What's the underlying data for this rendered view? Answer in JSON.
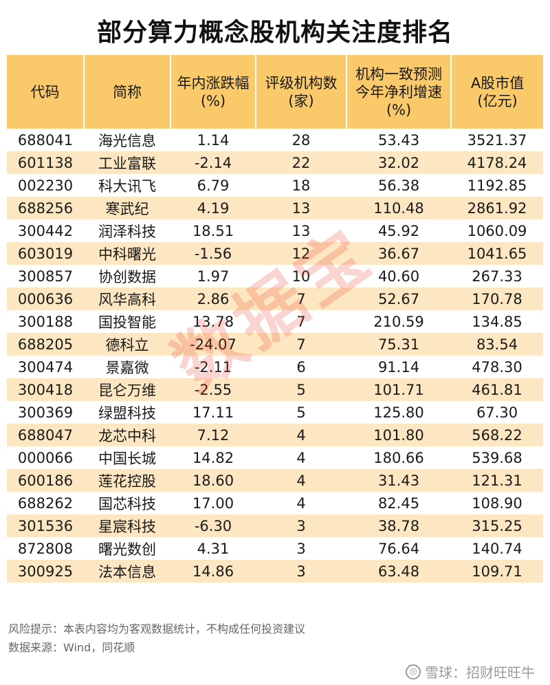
{
  "title": "部分算力概念股机构关注度排名",
  "headers": [
    {
      "lines": [
        "代码"
      ]
    },
    {
      "lines": [
        "简称"
      ]
    },
    {
      "lines": [
        "年内涨跌幅",
        "(%)"
      ]
    },
    {
      "lines": [
        "评级机构数",
        "(家)"
      ]
    },
    {
      "lines": [
        "机构一致预测",
        "今年净利增速",
        "(%)"
      ]
    },
    {
      "lines": [
        "A股市值",
        "(亿元)"
      ]
    }
  ],
  "rows": [
    [
      "688041",
      "海光信息",
      "1.14",
      "28",
      "53.43",
      "3521.37"
    ],
    [
      "601138",
      "工业富联",
      "-2.14",
      "22",
      "32.02",
      "4178.24"
    ],
    [
      "002230",
      "科大讯飞",
      "6.79",
      "18",
      "56.38",
      "1192.85"
    ],
    [
      "688256",
      "寒武纪",
      "4.19",
      "13",
      "110.48",
      "2861.92"
    ],
    [
      "300442",
      "润泽科技",
      "18.51",
      "13",
      "45.92",
      "1060.09"
    ],
    [
      "603019",
      "中科曙光",
      "-1.56",
      "12",
      "36.67",
      "1041.65"
    ],
    [
      "300857",
      "协创数据",
      "1.97",
      "10",
      "40.60",
      "267.33"
    ],
    [
      "000636",
      "风华高科",
      "2.86",
      "7",
      "52.67",
      "170.78"
    ],
    [
      "300188",
      "国投智能",
      "13.78",
      "7",
      "210.59",
      "134.85"
    ],
    [
      "688205",
      "德科立",
      "-24.07",
      "7",
      "75.31",
      "83.54"
    ],
    [
      "300474",
      "景嘉微",
      "-2.11",
      "6",
      "91.14",
      "478.30"
    ],
    [
      "300418",
      "昆仑万维",
      "-2.55",
      "5",
      "101.71",
      "461.81"
    ],
    [
      "300369",
      "绿盟科技",
      "17.11",
      "5",
      "125.80",
      "67.30"
    ],
    [
      "688047",
      "龙芯中科",
      "7.12",
      "4",
      "101.80",
      "568.22"
    ],
    [
      "000066",
      "中国长城",
      "14.82",
      "4",
      "180.66",
      "539.68"
    ],
    [
      "600186",
      "莲花控股",
      "18.60",
      "4",
      "31.43",
      "121.31"
    ],
    [
      "688262",
      "国芯科技",
      "17.00",
      "4",
      "82.45",
      "108.90"
    ],
    [
      "301536",
      "星宸科技",
      "-6.30",
      "3",
      "38.78",
      "315.25"
    ],
    [
      "872808",
      "曙光数创",
      "4.31",
      "3",
      "76.64",
      "140.74"
    ],
    [
      "300925",
      "法本信息",
      "14.86",
      "3",
      "63.48",
      "109.71"
    ]
  ],
  "notes": {
    "risk": "风险提示：本表内容均为客观数据统计，不构成任何投资建议",
    "source": "数据来源：Wind，同花顺"
  },
  "watermark": "数据宝",
  "brand": {
    "icon": "xueqiu-logo-icon",
    "text": "雪球：招财旺旺牛"
  },
  "colors": {
    "header_bg": "#f9c96a",
    "stripe_bg": "#fde7c2",
    "watermark": "#e63c28"
  }
}
